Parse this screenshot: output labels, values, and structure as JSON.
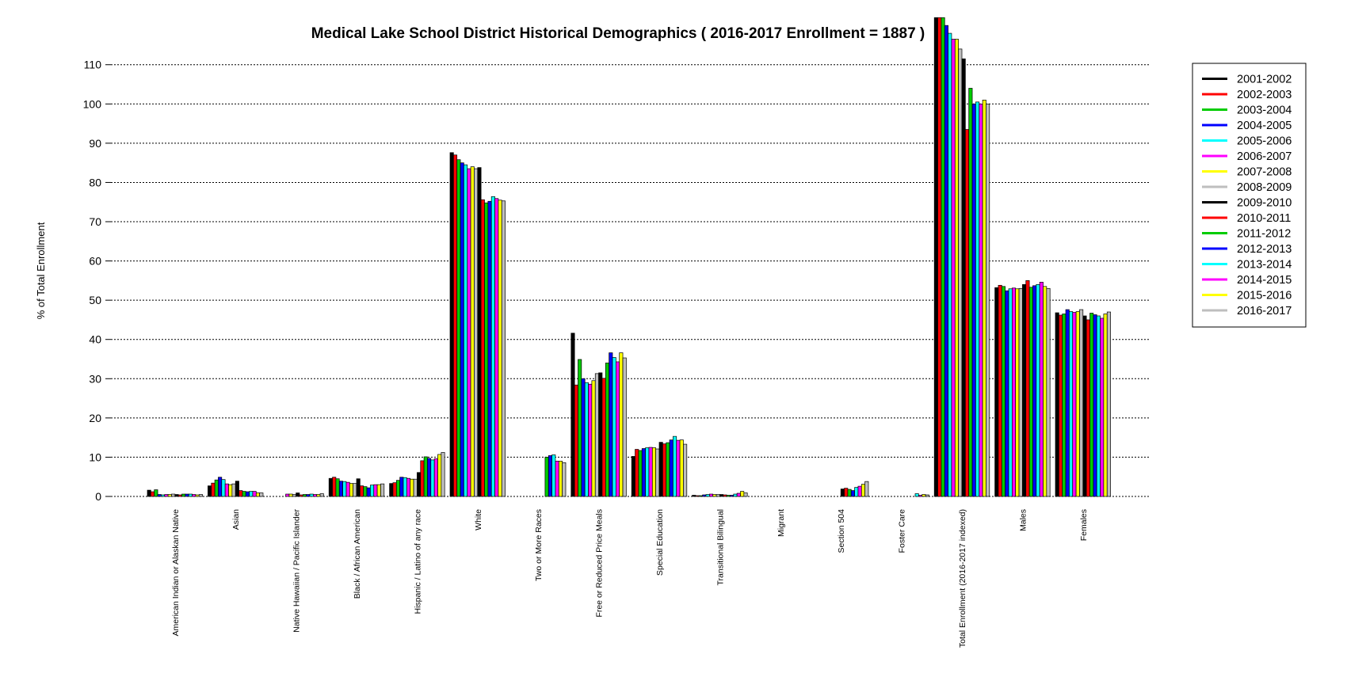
{
  "chart_data": {
    "type": "bar",
    "title": "Medical Lake School District Historical Demographics  ( 2016-2017 Enrollment =  1887 )",
    "xlabel": "",
    "ylabel": "% of Total Enrollment",
    "ylim": [
      0,
      122
    ],
    "yticks": [
      0,
      10,
      20,
      30,
      40,
      50,
      60,
      70,
      80,
      90,
      100,
      110
    ],
    "grid": "horizontal dotted",
    "legend_position": "right",
    "categories": [
      "American Indian or Alaskan Native",
      "Asian",
      "Native Hawaiian / Pacific Islander",
      "Black / African American",
      "Hispanic / Latino of any race",
      "White",
      "Two or More Races",
      "Free or Reduced Price Meals",
      "Special Education",
      "Transitional Bilingual",
      "Migrant",
      "Section 504",
      "Foster Care",
      "Total Enrollment (2016-2017 indexed)",
      "Males",
      "Females"
    ],
    "series": [
      {
        "name": "2001-2002",
        "color": "#000000",
        "values": [
          1.6,
          2.7,
          0,
          4.6,
          3.3,
          87.6,
          0,
          41.6,
          10.2,
          0.3,
          0,
          0,
          0,
          122,
          53.2,
          46.8
        ]
      },
      {
        "name": "2002-2003",
        "color": "#ff0000",
        "values": [
          1.2,
          3.4,
          0,
          4.9,
          3.5,
          87.0,
          0,
          28.4,
          12.0,
          0.2,
          0,
          0,
          0,
          122,
          53.8,
          46.2
        ]
      },
      {
        "name": "2003-2004",
        "color": "#00cc00",
        "values": [
          1.7,
          4.2,
          0,
          4.5,
          4.1,
          85.8,
          0,
          34.9,
          11.7,
          0.2,
          0,
          0,
          0,
          122,
          53.5,
          46.5
        ]
      },
      {
        "name": "2004-2005",
        "color": "#0000ff",
        "values": [
          0.5,
          4.9,
          0,
          3.9,
          4.9,
          85.0,
          0,
          30.0,
          12.2,
          0.4,
          0,
          0,
          0,
          120,
          52.4,
          47.6
        ]
      },
      {
        "name": "2005-2006",
        "color": "#00ffff",
        "values": [
          0.4,
          4.3,
          0,
          3.8,
          4.8,
          84.5,
          0,
          29.0,
          12.4,
          0.5,
          0,
          0,
          0,
          118,
          52.9,
          47.1
        ]
      },
      {
        "name": "2006-2007",
        "color": "#ff00ff",
        "values": [
          0.5,
          3.2,
          0.6,
          3.6,
          4.6,
          83.5,
          0,
          28.6,
          12.5,
          0.6,
          0,
          0,
          0,
          116.5,
          53.1,
          46.9
        ]
      },
      {
        "name": "2007-2008",
        "color": "#ffff00",
        "values": [
          0.5,
          3.0,
          0.6,
          3.3,
          4.4,
          84.0,
          0,
          29.5,
          12.4,
          0.5,
          0,
          0,
          0,
          116.5,
          52.9,
          47.1
        ]
      },
      {
        "name": "2008-2009",
        "color": "#bebebe",
        "values": [
          0.6,
          3.2,
          0.5,
          3.3,
          4.4,
          83.5,
          0,
          31.3,
          12.1,
          0.5,
          0,
          0,
          0,
          114,
          53.0,
          47.6
        ]
      },
      {
        "name": "2009-2010",
        "color": "#000000",
        "values": [
          0.5,
          3.9,
          0.9,
          4.5,
          6.1,
          83.8,
          0,
          31.5,
          13.8,
          0.5,
          0,
          1.9,
          0,
          111.5,
          54.0,
          46.0
        ]
      },
      {
        "name": "2010-2011",
        "color": "#ff0000",
        "values": [
          0.4,
          1.5,
          0.4,
          2.7,
          9.1,
          75.6,
          0,
          30.1,
          13.4,
          0.4,
          0,
          2.1,
          0,
          93.5,
          55.0,
          45.0
        ]
      },
      {
        "name": "2011-2012",
        "color": "#00cc00",
        "values": [
          0.6,
          1.3,
          0.5,
          2.5,
          10.1,
          74.8,
          10.0,
          34.0,
          13.7,
          0.3,
          0,
          1.8,
          0,
          104,
          53.3,
          46.7
        ]
      },
      {
        "name": "2012-2013",
        "color": "#0000ff",
        "values": [
          0.6,
          1.2,
          0.5,
          2.2,
          9.7,
          75.2,
          10.4,
          36.6,
          14.4,
          0.3,
          0,
          1.5,
          0,
          100,
          53.7,
          46.3
        ]
      },
      {
        "name": "2013-2014",
        "color": "#00ffff",
        "values": [
          0.6,
          1.3,
          0.6,
          2.9,
          9.3,
          76.4,
          10.6,
          35.4,
          15.3,
          0.6,
          0,
          2.3,
          0.7,
          100.5,
          54.0,
          46.0
        ]
      },
      {
        "name": "2014-2015",
        "color": "#ff00ff",
        "values": [
          0.5,
          1.3,
          0.5,
          3.0,
          9.6,
          75.9,
          9.0,
          34.3,
          14.3,
          0.8,
          0,
          2.6,
          0.3,
          100,
          54.6,
          45.4
        ]
      },
      {
        "name": "2015-2016",
        "color": "#ffff00",
        "values": [
          0.4,
          0.9,
          0.5,
          3.0,
          10.7,
          75.5,
          9.0,
          36.6,
          14.4,
          1.3,
          0,
          3.1,
          0.5,
          101,
          53.5,
          46.5
        ]
      },
      {
        "name": "2016-2017",
        "color": "#bebebe",
        "values": [
          0.5,
          0.9,
          0.7,
          3.2,
          11.2,
          75.3,
          8.6,
          35.3,
          13.3,
          0.9,
          0,
          3.8,
          0.4,
          100,
          53.0,
          47.0
        ]
      }
    ]
  }
}
